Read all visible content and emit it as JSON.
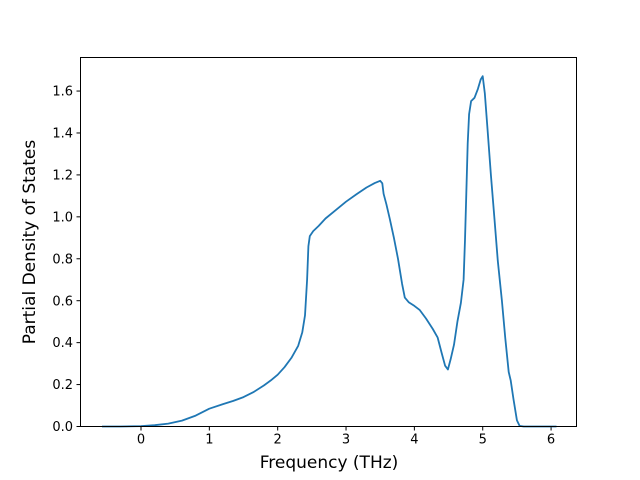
{
  "figure": {
    "background": "#ffffff",
    "axis_color": "#000000",
    "text_color": "#000000"
  },
  "chart_data": {
    "type": "line",
    "title": "",
    "xlabel": "Frequency (THz)",
    "ylabel": "Partial Density of States",
    "xlim": [
      -0.885,
      6.372
    ],
    "ylim": [
      0,
      1.76
    ],
    "xticks": [
      0,
      1,
      2,
      3,
      4,
      5,
      6
    ],
    "xtick_labels": [
      "0",
      "1",
      "2",
      "3",
      "4",
      "5",
      "6"
    ],
    "yticks": [
      0.0,
      0.2,
      0.4,
      0.6,
      0.8,
      1.0,
      1.2,
      1.4,
      1.6
    ],
    "ytick_labels": [
      "0.0",
      "0.2",
      "0.4",
      "0.6",
      "0.8",
      "1.0",
      "1.2",
      "1.4",
      "1.6"
    ],
    "grid": false,
    "legend": "none",
    "series": [
      {
        "name": "partial-dos",
        "color": "#1f77b4",
        "points": [
          [
            -0.57,
            0.0
          ],
          [
            -0.3,
            0.0
          ],
          [
            0.0,
            0.002
          ],
          [
            0.2,
            0.006
          ],
          [
            0.4,
            0.014
          ],
          [
            0.6,
            0.028
          ],
          [
            0.8,
            0.052
          ],
          [
            1.0,
            0.085
          ],
          [
            1.2,
            0.107
          ],
          [
            1.35,
            0.122
          ],
          [
            1.5,
            0.14
          ],
          [
            1.65,
            0.165
          ],
          [
            1.8,
            0.196
          ],
          [
            1.9,
            0.22
          ],
          [
            2.0,
            0.247
          ],
          [
            2.1,
            0.283
          ],
          [
            2.2,
            0.327
          ],
          [
            2.3,
            0.385
          ],
          [
            2.36,
            0.45
          ],
          [
            2.4,
            0.53
          ],
          [
            2.43,
            0.7
          ],
          [
            2.45,
            0.86
          ],
          [
            2.47,
            0.908
          ],
          [
            2.52,
            0.932
          ],
          [
            2.6,
            0.957
          ],
          [
            2.7,
            0.992
          ],
          [
            2.85,
            1.032
          ],
          [
            3.0,
            1.072
          ],
          [
            3.15,
            1.107
          ],
          [
            3.3,
            1.14
          ],
          [
            3.42,
            1.161
          ],
          [
            3.5,
            1.172
          ],
          [
            3.53,
            1.16
          ],
          [
            3.55,
            1.11
          ],
          [
            3.59,
            1.06
          ],
          [
            3.64,
            0.99
          ],
          [
            3.7,
            0.9
          ],
          [
            3.76,
            0.8
          ],
          [
            3.82,
            0.68
          ],
          [
            3.86,
            0.615
          ],
          [
            3.92,
            0.592
          ],
          [
            4.0,
            0.575
          ],
          [
            4.08,
            0.555
          ],
          [
            4.17,
            0.515
          ],
          [
            4.27,
            0.465
          ],
          [
            4.34,
            0.425
          ],
          [
            4.4,
            0.35
          ],
          [
            4.45,
            0.29
          ],
          [
            4.49,
            0.272
          ],
          [
            4.53,
            0.32
          ],
          [
            4.58,
            0.39
          ],
          [
            4.63,
            0.5
          ],
          [
            4.68,
            0.59
          ],
          [
            4.72,
            0.7
          ],
          [
            4.74,
            0.89
          ],
          [
            4.76,
            1.11
          ],
          [
            4.78,
            1.35
          ],
          [
            4.8,
            1.49
          ],
          [
            4.83,
            1.552
          ],
          [
            4.88,
            1.568
          ],
          [
            4.93,
            1.61
          ],
          [
            4.97,
            1.655
          ],
          [
            5.0,
            1.671
          ],
          [
            5.03,
            1.59
          ],
          [
            5.07,
            1.42
          ],
          [
            5.12,
            1.2
          ],
          [
            5.17,
            1.0
          ],
          [
            5.22,
            0.79
          ],
          [
            5.28,
            0.6
          ],
          [
            5.33,
            0.42
          ],
          [
            5.38,
            0.26
          ],
          [
            5.41,
            0.22
          ],
          [
            5.45,
            0.13
          ],
          [
            5.5,
            0.03
          ],
          [
            5.54,
            0.003
          ],
          [
            5.6,
            0.0
          ],
          [
            6.08,
            0.0
          ]
        ]
      }
    ]
  }
}
